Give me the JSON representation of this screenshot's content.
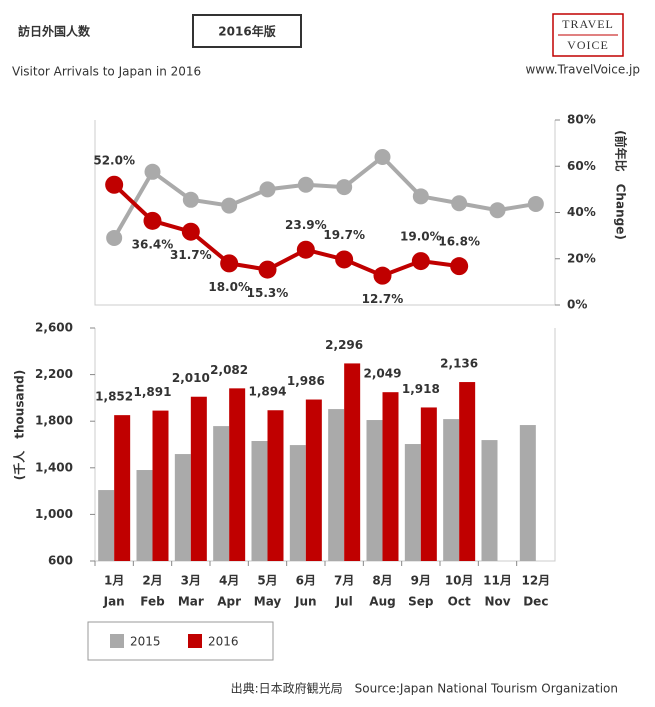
{
  "header": {
    "title": "訪日外国人数",
    "badge": "2016年版",
    "subtitle": "Visitor Arrivals to Japan in 2016",
    "logo_top": "TRAVEL",
    "logo_bottom": "VOICE",
    "url": "www.TravelVoice.jp"
  },
  "source": "出典:日本政府観光局　Source:Japan National Tourism Organization",
  "chart_data": [
    {
      "type": "line",
      "y_label": "(前年比　Change)",
      "ylim": [
        0,
        80
      ],
      "yticks": [
        {
          "value": 0,
          "label": "0%"
        },
        {
          "value": 20,
          "label": "20%"
        },
        {
          "value": 40,
          "label": "40%"
        },
        {
          "value": 60,
          "label": "60%"
        },
        {
          "value": 80,
          "label": "80%"
        }
      ],
      "series": [
        {
          "color": "#aaaaaa",
          "values": [
            29,
            57.6,
            45.5,
            43,
            50,
            52,
            51,
            64,
            47,
            44,
            41,
            43.7
          ]
        },
        {
          "color": "#c00000",
          "values": [
            52.0,
            36.4,
            31.7,
            18.0,
            15.3,
            23.9,
            19.7,
            12.7,
            19.0,
            16.8,
            null,
            null
          ],
          "value_labels": [
            "52.0%",
            "36.4%",
            "31.7%",
            "18.0%",
            "15.3%",
            "23.9%",
            "19.7%",
            "12.7%",
            "19.0%",
            "16.8%",
            null,
            null
          ]
        }
      ]
    },
    {
      "type": "bar",
      "y_label": "(千人　thousand)",
      "categories": [
        "1月",
        "2月",
        "3月",
        "4月",
        "5月",
        "6月",
        "7月",
        "8月",
        "9月",
        "10月",
        "11月",
        "12月"
      ],
      "categories_en": [
        "Jan",
        "Feb",
        "Mar",
        "Apr",
        "May",
        "Jun",
        "Jul",
        "Aug",
        "Sep",
        "Oct",
        "Nov",
        "Dec"
      ],
      "ylim": [
        600,
        2600
      ],
      "yticks": [
        600,
        {
          "value": 1000,
          "label": "1,000"
        },
        {
          "value": 1400,
          "label": "1,400"
        },
        {
          "value": 1800,
          "label": "1,800"
        },
        {
          "value": 2200,
          "label": "2,200"
        },
        {
          "value": 2600,
          "label": "2,600"
        }
      ],
      "series": [
        {
          "name": "2015",
          "color": "#aaaaaa",
          "values": [
            1209,
            1381,
            1518,
            1758,
            1630,
            1595,
            1904,
            1810,
            1604,
            1818,
            1638,
            1767
          ]
        },
        {
          "name": "2016",
          "color": "#c00000",
          "values": [
            1852,
            1891,
            2010,
            2082,
            1894,
            1986,
            2296,
            2049,
            1918,
            2136,
            null,
            null
          ],
          "value_labels": [
            "1,852",
            "1,891",
            "2,010",
            "2,082",
            "1,894",
            "1,986",
            "2,296",
            "2,049",
            "1,918",
            "2,136",
            null,
            null
          ]
        }
      ]
    }
  ]
}
